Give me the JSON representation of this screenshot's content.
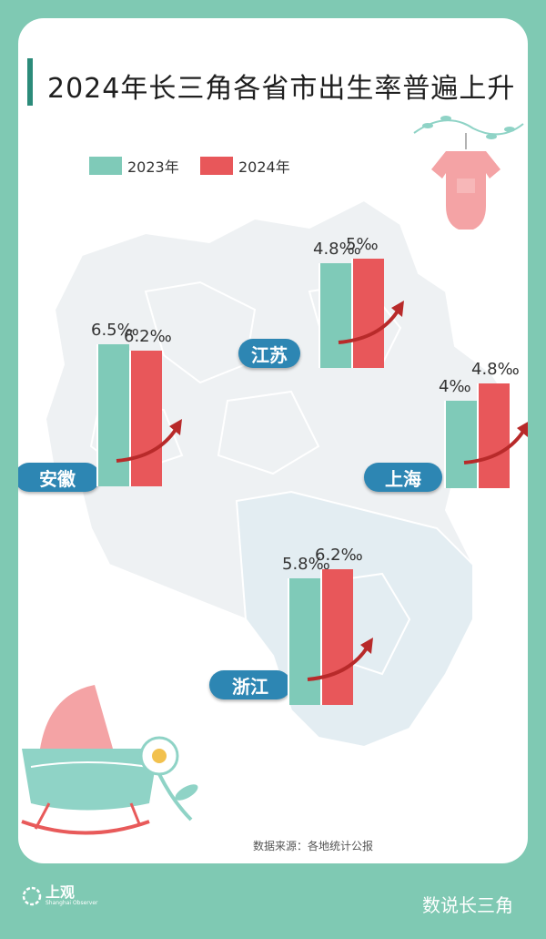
{
  "title": "2024年长三角各省市出生率普遍上升",
  "chart_data": {
    "type": "bar",
    "categories": [
      "江苏",
      "上海",
      "安徽",
      "浙江"
    ],
    "series": [
      {
        "name": "2023年",
        "values": [
          4.8,
          4.0,
          6.5,
          5.8
        ]
      },
      {
        "name": "2024年",
        "values": [
          5.0,
          4.8,
          6.2,
          6.2
        ]
      }
    ],
    "value_labels": {
      "江苏": [
        "4.8‰",
        "5‰"
      ],
      "上海": [
        "4‰",
        "4.8‰"
      ],
      "安徽": [
        "6.5‰",
        "6.2‰"
      ],
      "浙江": [
        "5.8‰",
        "6.2‰"
      ]
    },
    "unit": "‰",
    "colors": [
      "#7fcab8",
      "#e8575a"
    ],
    "legend_position": "top-left"
  },
  "labels": {
    "jiangsu": "江苏",
    "shanghai": "上海",
    "anhui": "安徽",
    "zhejiang": "浙江"
  },
  "source": "数据来源：各地统计公报",
  "footer": {
    "brand": "上观",
    "brand_sub": "Shanghai Observer",
    "series_name": "数说长三角"
  },
  "icons": [
    "baby-romper-icon",
    "cradle-icon",
    "flower-icon",
    "branch-icon",
    "arrow-up-icon",
    "logo-icon"
  ]
}
